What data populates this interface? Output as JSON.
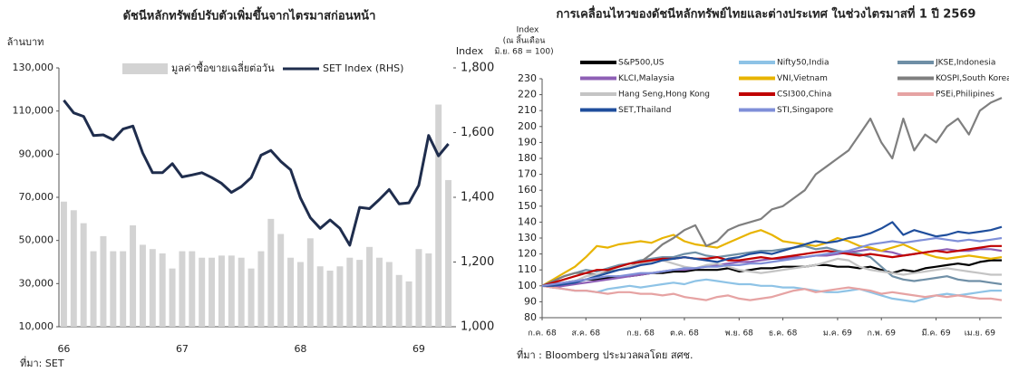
{
  "chart_data": [
    {
      "type": "bar",
      "title": "ดัชนีหลักทรัพย์ปรับตัวเพิ่มขึ้นจากไตรมาสก่อนหน้า",
      "ylabel": "ล้านบาท",
      "y2label": "Index",
      "source": "ที่มา: SET",
      "categories": [
        "66",
        null,
        null,
        null,
        null,
        null,
        null,
        null,
        null,
        null,
        null,
        null,
        "67",
        null,
        null,
        null,
        null,
        null,
        null,
        null,
        null,
        null,
        null,
        null,
        "68",
        null,
        null,
        null,
        null,
        null,
        null,
        null,
        null,
        null,
        null,
        null,
        "69",
        null,
        null,
        null
      ],
      "series": [
        {
          "name": "มูลค่าซื้อขายเฉลี่ยต่อวัน",
          "type": "bar",
          "color": "#d3d3d3",
          "axis": "y",
          "values": [
            68000,
            64000,
            58000,
            45000,
            52000,
            45000,
            45000,
            57000,
            48000,
            46000,
            44000,
            37000,
            45000,
            45000,
            42000,
            42000,
            43000,
            43000,
            42000,
            37000,
            45000,
            60000,
            53000,
            42000,
            40000,
            51000,
            38000,
            36000,
            38000,
            42000,
            41000,
            47000,
            42000,
            40000,
            34000,
            31000,
            46000,
            44000,
            113000,
            78000
          ]
        },
        {
          "name": "SET Index (RHS)",
          "type": "line",
          "color": "#1f2d4d",
          "axis": "y2",
          "values": [
            1700,
            1661,
            1650,
            1591,
            1593,
            1578,
            1611,
            1620,
            1537,
            1476,
            1476,
            1504,
            1463,
            1469,
            1476,
            1461,
            1443,
            1415,
            1433,
            1461,
            1530,
            1545,
            1511,
            1485,
            1398,
            1337,
            1304,
            1330,
            1304,
            1252,
            1369,
            1365,
            1393,
            1424,
            1380,
            1383,
            1437,
            1591,
            1528,
            1565
          ]
        }
      ],
      "ylim": [
        10000,
        130000
      ],
      "yticks": [
        {
          "value": 10000,
          "label": "10,000"
        },
        {
          "value": 30000,
          "label": "30,000"
        },
        {
          "value": 50000,
          "label": "50,000"
        },
        {
          "value": 70000,
          "label": "70,000"
        },
        {
          "value": 90000,
          "label": "90,000"
        },
        {
          "value": 110000,
          "label": "110,000"
        },
        {
          "value": 130000,
          "label": "130,000"
        }
      ],
      "y2lim": [
        1000,
        1800
      ],
      "y2ticks": [
        {
          "value": 1000,
          "label": "1,000"
        },
        {
          "value": 1200,
          "label": "1,200"
        },
        {
          "value": 1400,
          "label": "1,400"
        },
        {
          "value": 1600,
          "label": "1,600"
        },
        {
          "value": 1800,
          "label": "1,800"
        }
      ],
      "grid": false,
      "legend": "top"
    },
    {
      "type": "line",
      "title": "การเคลื่อนไหวของดัชนีหลักทรัพย์ไทยและต่างประเทศ ในช่วงไตรมาสที่ 1 ปี 2569",
      "ylabel": [
        "Index",
        "(ณ สิ้นเดือน",
        "มิ.ย. 68 = 100)"
      ],
      "source": "ที่มา : Bloomberg ประมวลผลโดย สศช.",
      "categories": [
        "ก.ค. 68",
        null,
        null,
        null,
        "ส.ค. 68",
        null,
        null,
        null,
        null,
        "ก.ย. 68",
        null,
        null,
        null,
        "ต.ค. 68",
        null,
        null,
        null,
        null,
        "พ.ย. 68",
        null,
        null,
        null,
        "ธ.ค. 68",
        null,
        null,
        null,
        null,
        "ม.ค. 69",
        null,
        null,
        null,
        "ก.พ. 69",
        null,
        null,
        null,
        null,
        "มี.ค. 69",
        null,
        null,
        null,
        "เม.ย. 69",
        null,
        null
      ],
      "series": [
        {
          "name": "S&P500,US",
          "color": "#000000",
          "values": [
            100,
            101,
            102,
            103,
            104,
            104,
            105,
            106,
            106,
            107,
            108,
            108,
            109,
            109,
            110,
            110,
            110,
            111,
            109,
            110,
            111,
            111,
            112,
            112,
            112,
            113,
            113,
            112,
            112,
            111,
            112,
            110,
            108,
            110,
            109,
            111,
            112,
            113,
            114,
            113,
            115,
            116,
            116
          ]
        },
        {
          "name": "Nifty50,India",
          "color": "#8ec3e6",
          "values": [
            100,
            99,
            98,
            97,
            97,
            96,
            98,
            99,
            100,
            99,
            100,
            101,
            102,
            101,
            103,
            104,
            103,
            102,
            101,
            101,
            100,
            100,
            99,
            99,
            98,
            97,
            96,
            96,
            97,
            98,
            96,
            94,
            92,
            91,
            90,
            92,
            94,
            95,
            94,
            95,
            96,
            97,
            97
          ]
        },
        {
          "name": "JKSE,Indonesia",
          "color": "#6f8fa6",
          "values": [
            100,
            103,
            106,
            108,
            110,
            109,
            111,
            113,
            114,
            116,
            117,
            118,
            118,
            120,
            121,
            119,
            118,
            119,
            120,
            121,
            122,
            122,
            123,
            124,
            125,
            123,
            124,
            122,
            121,
            120,
            118,
            112,
            106,
            104,
            103,
            104,
            105,
            106,
            104,
            103,
            103,
            102,
            101
          ]
        },
        {
          "name": "KLCI,Malaysia",
          "color": "#8e5fb5",
          "values": [
            100,
            99,
            100,
            101,
            102,
            103,
            104,
            105,
            106,
            107,
            108,
            109,
            110,
            110,
            111,
            112,
            113,
            114,
            115,
            115,
            116,
            117,
            117,
            118,
            118,
            119,
            119,
            120,
            121,
            122,
            123,
            122,
            121,
            119,
            120,
            121,
            122,
            123,
            122,
            122,
            123,
            123,
            122
          ]
        },
        {
          "name": "VNI,Vietnam",
          "color": "#e8b400",
          "values": [
            100,
            104,
            108,
            112,
            118,
            125,
            124,
            126,
            127,
            128,
            127,
            130,
            132,
            128,
            126,
            125,
            124,
            127,
            130,
            133,
            135,
            132,
            128,
            127,
            126,
            125,
            127,
            130,
            128,
            125,
            124,
            122,
            124,
            126,
            123,
            120,
            118,
            117,
            118,
            119,
            118,
            117,
            118
          ]
        },
        {
          "name": "KOSPI,South Korea",
          "color": "#7f7f7f",
          "values": [
            100,
            103,
            106,
            108,
            108,
            107,
            109,
            110,
            112,
            115,
            120,
            126,
            130,
            135,
            138,
            125,
            128,
            135,
            138,
            140,
            142,
            148,
            150,
            155,
            160,
            170,
            175,
            180,
            185,
            195,
            205,
            190,
            180,
            205,
            185,
            195,
            190,
            200,
            205,
            195,
            210,
            215,
            218
          ]
        },
        {
          "name": "Hang Seng,Hong Kong",
          "color": "#c4c4c4",
          "values": [
            100,
            101,
            102,
            103,
            106,
            107,
            108,
            110,
            112,
            114,
            115,
            116,
            114,
            112,
            111,
            113,
            114,
            112,
            110,
            109,
            108,
            109,
            110,
            111,
            112,
            113,
            115,
            117,
            116,
            112,
            110,
            109,
            108,
            107,
            108,
            109,
            110,
            111,
            110,
            109,
            108,
            107,
            107
          ]
        },
        {
          "name": "CSI300,China",
          "color": "#c00000",
          "values": [
            100,
            102,
            104,
            106,
            108,
            110,
            110,
            112,
            114,
            115,
            116,
            117,
            117,
            118,
            117,
            117,
            118,
            116,
            116,
            117,
            118,
            117,
            118,
            119,
            120,
            121,
            122,
            121,
            120,
            119,
            120,
            119,
            118,
            119,
            120,
            121,
            122,
            121,
            122,
            123,
            124,
            125,
            125
          ]
        },
        {
          "name": "PSEi,Philipines",
          "color": "#e6a3a3",
          "values": [
            100,
            99,
            98,
            97,
            97,
            96,
            95,
            96,
            96,
            95,
            95,
            94,
            95,
            93,
            92,
            91,
            93,
            94,
            92,
            91,
            92,
            93,
            95,
            97,
            98,
            96,
            97,
            98,
            99,
            98,
            97,
            95,
            96,
            95,
            94,
            93,
            94,
            93,
            94,
            93,
            92,
            92,
            91
          ]
        },
        {
          "name": "SET,Thailand",
          "color": "#1f4e9c",
          "values": [
            100,
            100,
            101,
            102,
            104,
            106,
            108,
            110,
            111,
            113,
            114,
            116,
            117,
            118,
            117,
            116,
            115,
            117,
            118,
            120,
            121,
            120,
            122,
            124,
            126,
            128,
            127,
            128,
            130,
            131,
            133,
            136,
            140,
            132,
            135,
            133,
            131,
            132,
            134,
            133,
            134,
            135,
            137
          ]
        },
        {
          "name": "STI,Singapore",
          "color": "#7f8fd8",
          "values": [
            100,
            101,
            102,
            103,
            104,
            105,
            106,
            106,
            107,
            108,
            108,
            109,
            110,
            111,
            111,
            112,
            112,
            113,
            113,
            114,
            114,
            115,
            116,
            117,
            118,
            119,
            120,
            121,
            122,
            124,
            126,
            127,
            128,
            127,
            128,
            129,
            130,
            129,
            128,
            129,
            128,
            129,
            130
          ]
        }
      ],
      "ylim": [
        80,
        230
      ],
      "yticks": [
        80,
        90,
        100,
        110,
        120,
        130,
        140,
        150,
        160,
        170,
        180,
        190,
        200,
        210,
        220,
        230
      ],
      "grid": false,
      "legend": "top"
    }
  ]
}
